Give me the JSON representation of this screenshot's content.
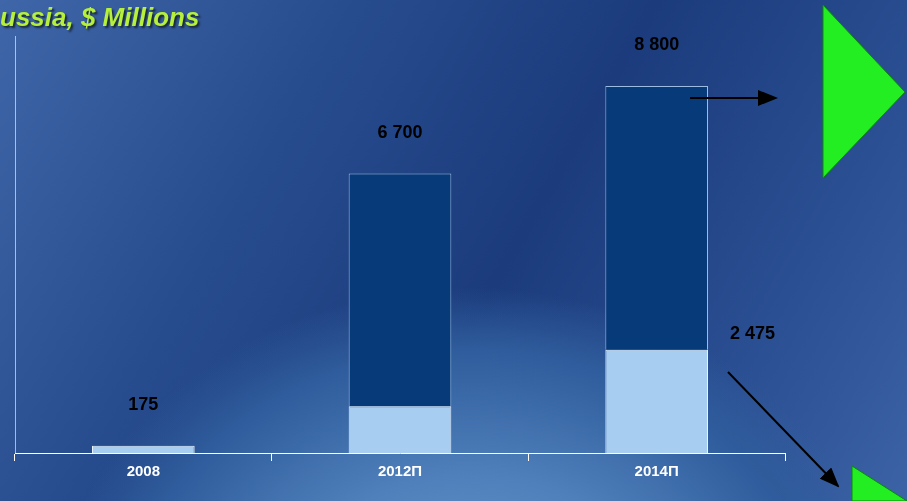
{
  "chart_data": {
    "type": "bar",
    "title": "ussia, $ Millions",
    "categories": [
      "2008",
      "2012П",
      "2014П"
    ],
    "series": [
      {
        "color": "#a7cdf0",
        "values": [
          175,
          1120,
          2475
        ],
        "value_labels": [
          null,
          null,
          "2 475"
        ]
      },
      {
        "color": "#073a78",
        "values": [
          0,
          5580,
          6325
        ]
      }
    ],
    "totals": [
      175,
      6700,
      8800
    ],
    "total_labels": [
      "175",
      "6 700",
      "8 800"
    ],
    "stacked": true,
    "data_labels": true,
    "ylim": [
      0,
      10000
    ],
    "yticks": [],
    "tick_labels": "x",
    "grid": false
  }
}
